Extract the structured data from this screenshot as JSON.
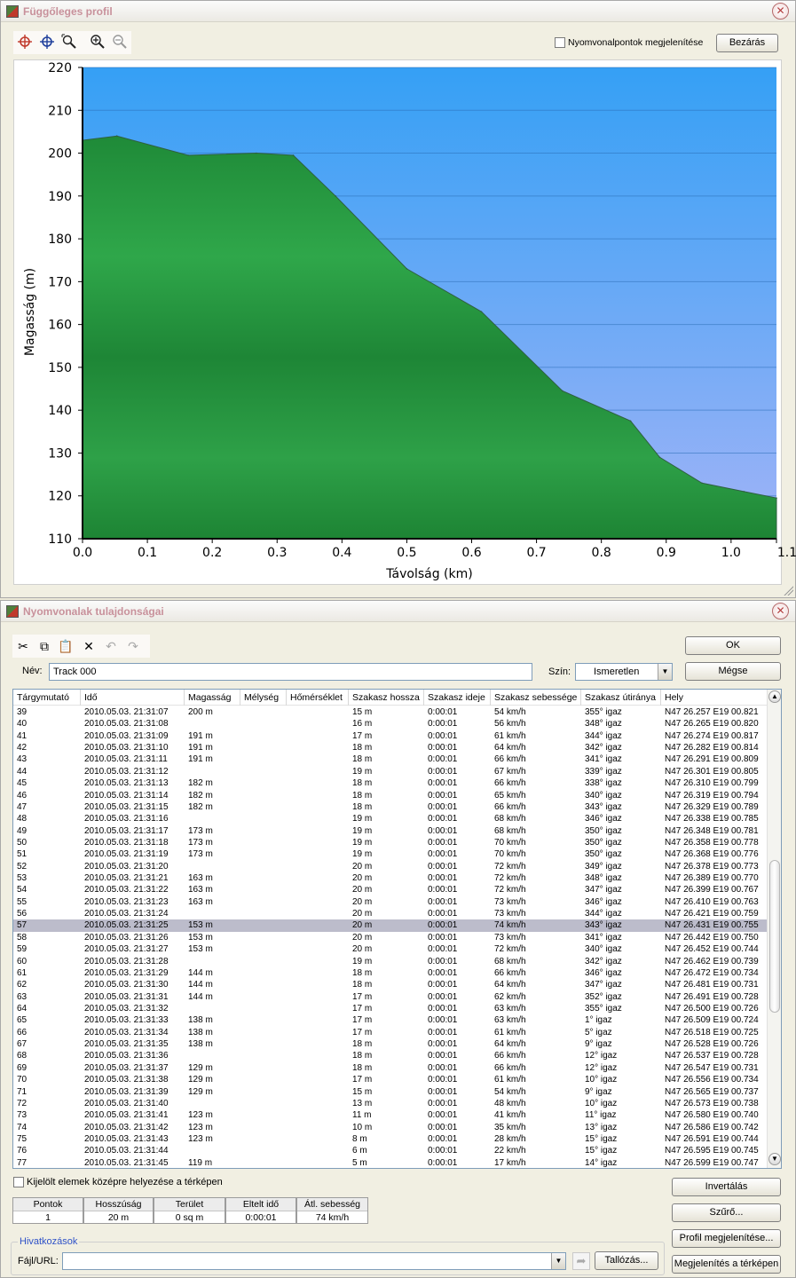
{
  "profile_window": {
    "title": "Függőleges profil",
    "show_points_label": "Nyomvonalpontok megjelenítése",
    "show_points_checked": false,
    "close_button": "Bezárás",
    "toolbar_icons": [
      "crosshair-red-icon",
      "crosshair-blue-icon",
      "zoom-area-icon",
      "zoom-in-icon",
      "zoom-out-icon"
    ]
  },
  "chart_data": {
    "type": "area",
    "xlabel": "Távolság  (km)",
    "ylabel": "Magasság (m)",
    "xlim": [
      0.0,
      1.07
    ],
    "ylim": [
      110,
      220
    ],
    "xticks": [
      "0.0",
      "0.1",
      "0.2",
      "0.3",
      "0.4",
      "0.5",
      "0.6",
      "0.7",
      "0.8",
      "0.9",
      "1.0",
      "1.1"
    ],
    "xtick_values": [
      0.0,
      0.1,
      0.2,
      0.3,
      0.4,
      0.5,
      0.6,
      0.7,
      0.8,
      0.9,
      1.0,
      1.1
    ],
    "yticks": [
      110,
      120,
      130,
      140,
      150,
      160,
      170,
      180,
      190,
      200,
      210,
      220
    ],
    "grid": true,
    "x": [
      0.0,
      0.053,
      0.163,
      0.268,
      0.325,
      0.39,
      0.5,
      0.615,
      0.74,
      0.845,
      0.89,
      0.955,
      1.02,
      1.07
    ],
    "y": [
      203,
      204,
      199.5,
      200,
      199.5,
      190,
      173,
      163,
      144.5,
      137.5,
      129,
      123,
      121,
      119.5
    ],
    "colors": {
      "fill_top": "#2a9a44",
      "fill_bottom": "#1f8a3a",
      "sky_top": "#3aa0f4",
      "sky_bottom": "#9fb2f7"
    }
  },
  "props_window": {
    "title": "Nyomvonalak tulajdonságai",
    "toolbar_icons": [
      "cut-icon",
      "copy-icon",
      "paste-icon",
      "delete-icon",
      "undo-icon",
      "redo-icon"
    ],
    "ok_button": "OK",
    "cancel_button": "Mégse",
    "name_label": "Név:",
    "name_value": "Track 000",
    "color_label": "Szín:",
    "color_value": "Ismeretlen",
    "columns": [
      "Tárgymutató",
      "Idő",
      "Magasság",
      "Mélység",
      "Hőmérséklet",
      "Szakasz hossza",
      "Szakasz ideje",
      "Szakasz sebessége",
      "Szakasz útiránya",
      "Hely"
    ],
    "selected_index": 18,
    "rows": [
      [
        "39",
        "2010.05.03. 21:31:07",
        "200 m",
        "",
        "",
        "15 m",
        "0:00:01",
        "54 km/h",
        "355° igaz",
        "N47 26.257 E19 00.821"
      ],
      [
        "40",
        "2010.05.03. 21:31:08",
        "",
        "",
        "",
        "16 m",
        "0:00:01",
        "56 km/h",
        "348° igaz",
        "N47 26.265 E19 00.820"
      ],
      [
        "41",
        "2010.05.03. 21:31:09",
        "191 m",
        "",
        "",
        "17 m",
        "0:00:01",
        "61 km/h",
        "344° igaz",
        "N47 26.274 E19 00.817"
      ],
      [
        "42",
        "2010.05.03. 21:31:10",
        "191 m",
        "",
        "",
        "18 m",
        "0:00:01",
        "64 km/h",
        "342° igaz",
        "N47 26.282 E19 00.814"
      ],
      [
        "43",
        "2010.05.03. 21:31:11",
        "191 m",
        "",
        "",
        "18 m",
        "0:00:01",
        "66 km/h",
        "341° igaz",
        "N47 26.291 E19 00.809"
      ],
      [
        "44",
        "2010.05.03. 21:31:12",
        "",
        "",
        "",
        "19 m",
        "0:00:01",
        "67 km/h",
        "339° igaz",
        "N47 26.301 E19 00.805"
      ],
      [
        "45",
        "2010.05.03. 21:31:13",
        "182 m",
        "",
        "",
        "18 m",
        "0:00:01",
        "66 km/h",
        "338° igaz",
        "N47 26.310 E19 00.799"
      ],
      [
        "46",
        "2010.05.03. 21:31:14",
        "182 m",
        "",
        "",
        "18 m",
        "0:00:01",
        "65 km/h",
        "340° igaz",
        "N47 26.319 E19 00.794"
      ],
      [
        "47",
        "2010.05.03. 21:31:15",
        "182 m",
        "",
        "",
        "18 m",
        "0:00:01",
        "66 km/h",
        "343° igaz",
        "N47 26.329 E19 00.789"
      ],
      [
        "48",
        "2010.05.03. 21:31:16",
        "",
        "",
        "",
        "19 m",
        "0:00:01",
        "68 km/h",
        "346° igaz",
        "N47 26.338 E19 00.785"
      ],
      [
        "49",
        "2010.05.03. 21:31:17",
        "173 m",
        "",
        "",
        "19 m",
        "0:00:01",
        "68 km/h",
        "350° igaz",
        "N47 26.348 E19 00.781"
      ],
      [
        "50",
        "2010.05.03. 21:31:18",
        "173 m",
        "",
        "",
        "19 m",
        "0:00:01",
        "70 km/h",
        "350° igaz",
        "N47 26.358 E19 00.778"
      ],
      [
        "51",
        "2010.05.03. 21:31:19",
        "173 m",
        "",
        "",
        "19 m",
        "0:00:01",
        "70 km/h",
        "350° igaz",
        "N47 26.368 E19 00.776"
      ],
      [
        "52",
        "2010.05.03. 21:31:20",
        "",
        "",
        "",
        "20 m",
        "0:00:01",
        "72 km/h",
        "349° igaz",
        "N47 26.378 E19 00.773"
      ],
      [
        "53",
        "2010.05.03. 21:31:21",
        "163 m",
        "",
        "",
        "20 m",
        "0:00:01",
        "72 km/h",
        "348° igaz",
        "N47 26.389 E19 00.770"
      ],
      [
        "54",
        "2010.05.03. 21:31:22",
        "163 m",
        "",
        "",
        "20 m",
        "0:00:01",
        "72 km/h",
        "347° igaz",
        "N47 26.399 E19 00.767"
      ],
      [
        "55",
        "2010.05.03. 21:31:23",
        "163 m",
        "",
        "",
        "20 m",
        "0:00:01",
        "73 km/h",
        "346° igaz",
        "N47 26.410 E19 00.763"
      ],
      [
        "56",
        "2010.05.03. 21:31:24",
        "",
        "",
        "",
        "20 m",
        "0:00:01",
        "73 km/h",
        "344° igaz",
        "N47 26.421 E19 00.759"
      ],
      [
        "57",
        "2010.05.03. 21:31:25",
        "153 m",
        "",
        "",
        "20 m",
        "0:00:01",
        "74 km/h",
        "343° igaz",
        "N47 26.431 E19 00.755"
      ],
      [
        "58",
        "2010.05.03. 21:31:26",
        "153 m",
        "",
        "",
        "20 m",
        "0:00:01",
        "73 km/h",
        "341° igaz",
        "N47 26.442 E19 00.750"
      ],
      [
        "59",
        "2010.05.03. 21:31:27",
        "153 m",
        "",
        "",
        "20 m",
        "0:00:01",
        "72 km/h",
        "340° igaz",
        "N47 26.452 E19 00.744"
      ],
      [
        "60",
        "2010.05.03. 21:31:28",
        "",
        "",
        "",
        "19 m",
        "0:00:01",
        "68 km/h",
        "342° igaz",
        "N47 26.462 E19 00.739"
      ],
      [
        "61",
        "2010.05.03. 21:31:29",
        "144 m",
        "",
        "",
        "18 m",
        "0:00:01",
        "66 km/h",
        "346° igaz",
        "N47 26.472 E19 00.734"
      ],
      [
        "62",
        "2010.05.03. 21:31:30",
        "144 m",
        "",
        "",
        "18 m",
        "0:00:01",
        "64 km/h",
        "347° igaz",
        "N47 26.481 E19 00.731"
      ],
      [
        "63",
        "2010.05.03. 21:31:31",
        "144 m",
        "",
        "",
        "17 m",
        "0:00:01",
        "62 km/h",
        "352° igaz",
        "N47 26.491 E19 00.728"
      ],
      [
        "64",
        "2010.05.03. 21:31:32",
        "",
        "",
        "",
        "17 m",
        "0:00:01",
        "63 km/h",
        "355° igaz",
        "N47 26.500 E19 00.726"
      ],
      [
        "65",
        "2010.05.03. 21:31:33",
        "138 m",
        "",
        "",
        "17 m",
        "0:00:01",
        "63 km/h",
        "1° igaz",
        "N47 26.509 E19 00.724"
      ],
      [
        "66",
        "2010.05.03. 21:31:34",
        "138 m",
        "",
        "",
        "17 m",
        "0:00:01",
        "61 km/h",
        "5° igaz",
        "N47 26.518 E19 00.725"
      ],
      [
        "67",
        "2010.05.03. 21:31:35",
        "138 m",
        "",
        "",
        "18 m",
        "0:00:01",
        "64 km/h",
        "9° igaz",
        "N47 26.528 E19 00.726"
      ],
      [
        "68",
        "2010.05.03. 21:31:36",
        "",
        "",
        "",
        "18 m",
        "0:00:01",
        "66 km/h",
        "12° igaz",
        "N47 26.537 E19 00.728"
      ],
      [
        "69",
        "2010.05.03. 21:31:37",
        "129 m",
        "",
        "",
        "18 m",
        "0:00:01",
        "66 km/h",
        "12° igaz",
        "N47 26.547 E19 00.731"
      ],
      [
        "70",
        "2010.05.03. 21:31:38",
        "129 m",
        "",
        "",
        "17 m",
        "0:00:01",
        "61 km/h",
        "10° igaz",
        "N47 26.556 E19 00.734"
      ],
      [
        "71",
        "2010.05.03. 21:31:39",
        "129 m",
        "",
        "",
        "15 m",
        "0:00:01",
        "54 km/h",
        "9° igaz",
        "N47 26.565 E19 00.737"
      ],
      [
        "72",
        "2010.05.03. 21:31:40",
        "",
        "",
        "",
        "13 m",
        "0:00:01",
        "48 km/h",
        "10° igaz",
        "N47 26.573 E19 00.738"
      ],
      [
        "73",
        "2010.05.03. 21:31:41",
        "123 m",
        "",
        "",
        "11 m",
        "0:00:01",
        "41 km/h",
        "11° igaz",
        "N47 26.580 E19 00.740"
      ],
      [
        "74",
        "2010.05.03. 21:31:42",
        "123 m",
        "",
        "",
        "10 m",
        "0:00:01",
        "35 km/h",
        "13° igaz",
        "N47 26.586 E19 00.742"
      ],
      [
        "75",
        "2010.05.03. 21:31:43",
        "123 m",
        "",
        "",
        "8 m",
        "0:00:01",
        "28 km/h",
        "15° igaz",
        "N47 26.591 E19 00.744"
      ],
      [
        "76",
        "2010.05.03. 21:31:44",
        "",
        "",
        "",
        "6 m",
        "0:00:01",
        "22 km/h",
        "15° igaz",
        "N47 26.595 E19 00.745"
      ],
      [
        "77",
        "2010.05.03. 21:31:45",
        "119 m",
        "",
        "",
        "5 m",
        "0:00:01",
        "17 km/h",
        "14° igaz",
        "N47 26.599 E19 00.747"
      ]
    ],
    "center_selected_label": "Kijelölt elemek középre helyezése a térképen",
    "center_selected_checked": false,
    "summary": [
      {
        "label": "Pontok",
        "value": "1"
      },
      {
        "label": "Hosszúság",
        "value": "20 m"
      },
      {
        "label": "Terület",
        "value": "0 sq m"
      },
      {
        "label": "Eltelt idő",
        "value": "0:00:01"
      },
      {
        "label": "Átl. sebesség",
        "value": "74 km/h"
      }
    ],
    "invert_button": "Invertálás",
    "filter_button": "Szűrő...",
    "show_profile_button": "Profil megjelenítése...",
    "links_group_label": "Hivatkozások",
    "file_url_label": "Fájl/URL:",
    "file_url_value": "",
    "browse_button": "Tallózás...",
    "show_on_map_button": "Megjelenítés a térképen"
  }
}
